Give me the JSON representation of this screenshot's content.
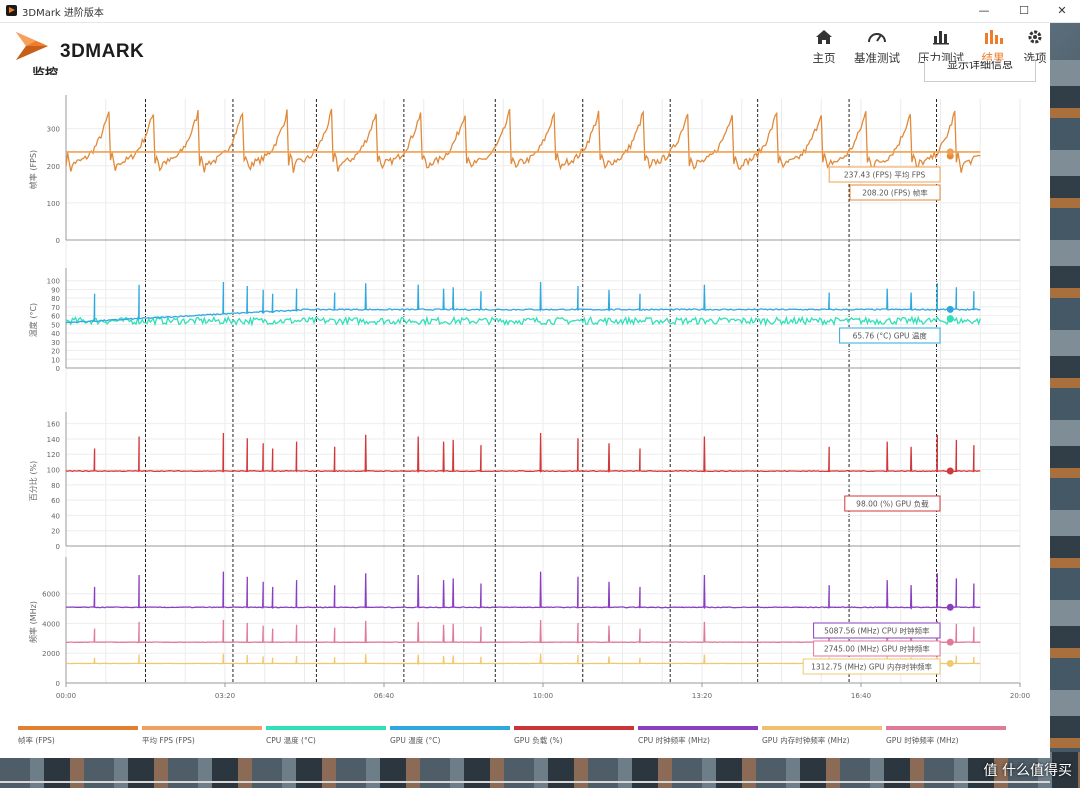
{
  "window": {
    "title": "3DMark 进阶版本",
    "minimize": "—",
    "maximize": "☐",
    "close": "✕"
  },
  "brand": {
    "logo_text": "3DMARK",
    "accent": "#ee7c2a"
  },
  "nav": [
    {
      "label": "主页",
      "icon": "home-icon"
    },
    {
      "label": "基准测试",
      "icon": "gauge-icon"
    },
    {
      "label": "压力测试",
      "icon": "bar-chart-icon"
    },
    {
      "label": "结果",
      "icon": "results-chart-icon",
      "active": true
    },
    {
      "label": "选项",
      "icon": "gear-icon"
    }
  ],
  "panel": {
    "title": "监控",
    "detail_button": "显示详细信息"
  },
  "watermark": "值 什么值得买",
  "chart_data": {
    "type": "line",
    "x_ticks": [
      "00:00",
      "03:20",
      "06:40",
      "10:00",
      "13:20",
      "16:40",
      "20:00"
    ],
    "x_range_seconds": [
      0,
      1200
    ],
    "end_seconds": 1150,
    "event_marker_seconds": [
      100,
      210,
      315,
      425,
      540,
      650,
      760,
      870,
      985,
      1095
    ],
    "spike_seconds": [
      36,
      92,
      290,
      338,
      377,
      487,
      522,
      597,
      644,
      683,
      722,
      803,
      1033,
      1063,
      1096,
      1120,
      1142,
      198,
      228,
      248,
      260,
      443,
      475,
      960
    ],
    "panels": [
      {
        "id": "fps",
        "ylabel": "帧率 (FPS)",
        "yticks": [
          0,
          100,
          200,
          300
        ],
        "ylim": [
          0,
          380
        ],
        "series": [
          {
            "name": "帧率 (FPS)",
            "color": "#e08a3a",
            "kind": "sawtooth",
            "base": 208,
            "peak": 360,
            "period": 56
          },
          {
            "name": "平均 FPS (FPS)",
            "color": "#f0a050",
            "kind": "flat",
            "value": 237.43
          }
        ],
        "callouts": [
          {
            "text": "237.43 (FPS) 平均 FPS",
            "color": "#f0a050"
          },
          {
            "text": "208.20 (FPS) 帧率",
            "color": "#e08a3a"
          }
        ]
      },
      {
        "id": "temp",
        "ylabel": "温度 (°C)",
        "yticks": [
          0,
          10,
          20,
          30,
          40,
          50,
          60,
          70,
          80,
          90,
          100
        ],
        "ylim": [
          0,
          110
        ],
        "series": [
          {
            "name": "CPU 温度 (°C)",
            "color": "#30e0b8",
            "kind": "noisy",
            "base": 54,
            "spikeTo": 0
          },
          {
            "name": "GPU 温度 (°C)",
            "color": "#2fa8e0",
            "kind": "rise",
            "from": 52,
            "to": 67,
            "spikeTo": 100
          }
        ],
        "callouts": [
          {
            "text": "65.76 (°C) GPU 温度",
            "color": "#2fa8e0"
          }
        ]
      },
      {
        "id": "load",
        "ylabel": "百分比 (%)",
        "yticks": [
          0,
          20,
          40,
          60,
          80,
          100,
          120,
          140,
          160
        ],
        "ylim": [
          0,
          170
        ],
        "series": [
          {
            "name": "GPU 负载 (%)",
            "color": "#d0383a",
            "kind": "flat-spiky",
            "value": 98,
            "spikeTo": 150
          }
        ],
        "callouts": [
          {
            "text": "98.00 (%) GPU 负载",
            "color": "#d0383a"
          }
        ]
      },
      {
        "id": "clock",
        "ylabel": "频率 (MHz)",
        "yticks": [
          0,
          2000,
          4000,
          6000
        ],
        "ylim": [
          0,
          8200
        ],
        "series": [
          {
            "name": "CPU 时钟频率 (MHz)",
            "color": "#8a3fc0",
            "kind": "flat-spiky",
            "value": 5087.56,
            "spikeTo": 7600
          },
          {
            "name": "GPU 时钟频率 (MHz)",
            "color": "#e07a98",
            "kind": "flat-spiky",
            "value": 2745,
            "spikeTo": 4300
          },
          {
            "name": "GPU 内存时钟频率 (MHz)",
            "color": "#f0c870",
            "kind": "flat-spiky",
            "value": 1312.75,
            "spikeTo": 2000
          }
        ],
        "callouts": [
          {
            "text": "5087.56 (MHz) CPU 时钟频率",
            "color": "#8a3fc0"
          },
          {
            "text": "2745.00 (MHz) GPU 时钟频率",
            "color": "#e07a98"
          },
          {
            "text": "1312.75 (MHz) GPU 内存时钟频率",
            "color": "#f0c870"
          }
        ]
      }
    ],
    "legend": [
      {
        "name": "帧率 (FPS)",
        "color": "#e08030"
      },
      {
        "name": "平均 FPS (FPS)",
        "color": "#f0a060"
      },
      {
        "name": "CPU 温度 (°C)",
        "color": "#30e0b8"
      },
      {
        "name": "GPU 温度 (°C)",
        "color": "#2fa8e0"
      },
      {
        "name": "GPU 负载 (%)",
        "color": "#c83438"
      },
      {
        "name": "CPU 时钟频率 (MHz)",
        "color": "#8a3fc0"
      },
      {
        "name": "GPU 内存时钟频率 (MHz)",
        "color": "#f0c070"
      },
      {
        "name": "GPU 时钟频率 (MHz)",
        "color": "#e07a98"
      }
    ]
  }
}
